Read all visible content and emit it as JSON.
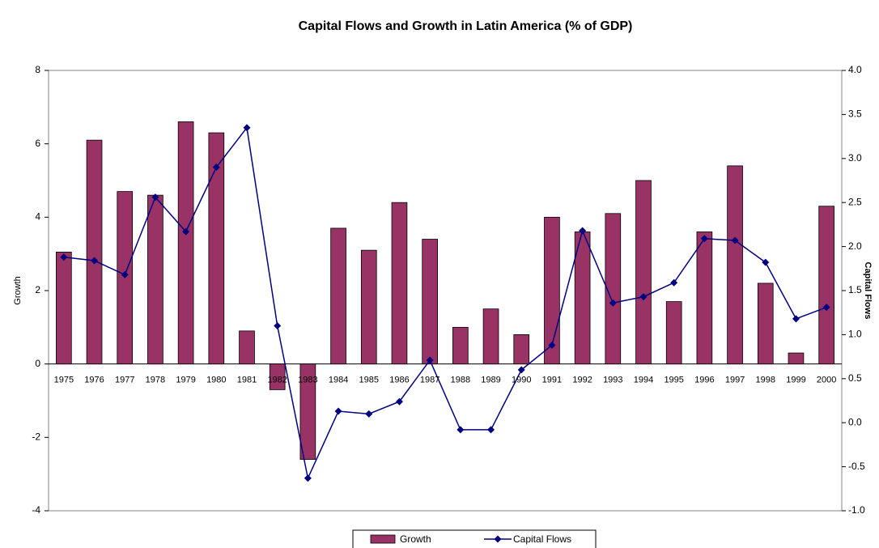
{
  "chart_data": {
    "type": "bar-line",
    "title": "Capital Flows and Growth in Latin America (% of GDP)",
    "y_label": "Growth",
    "y2_label": "Capital Flows",
    "categories": [
      "1975",
      "1976",
      "1977",
      "1978",
      "1979",
      "1980",
      "1981",
      "1982",
      "1983",
      "1984",
      "1985",
      "1986",
      "1987",
      "1988",
      "1989",
      "1990",
      "1991",
      "1992",
      "1993",
      "1994",
      "1995",
      "1996",
      "1997",
      "1998",
      "1999",
      "2000"
    ],
    "series": [
      {
        "name": "Growth",
        "color": "#993366",
        "kind": "bar",
        "values": [
          3.05,
          6.1,
          4.7,
          4.6,
          6.6,
          6.3,
          0.9,
          -0.7,
          -2.6,
          3.7,
          3.1,
          4.4,
          3.4,
          1.0,
          1.5,
          0.8,
          4.0,
          3.6,
          4.1,
          5.0,
          1.7,
          3.6,
          5.4,
          2.2,
          0.3,
          4.3
        ]
      },
      {
        "name": "Capital Flows",
        "color": "#000080",
        "kind": "line",
        "axis": "y2",
        "values": [
          1.88,
          1.84,
          1.68,
          2.56,
          2.17,
          2.9,
          3.35,
          1.1,
          -0.63,
          0.13,
          0.1,
          0.24,
          0.71,
          -0.08,
          -0.08,
          0.6,
          0.88,
          2.18,
          1.36,
          1.43,
          1.59,
          2.09,
          2.07,
          1.82,
          1.18,
          1.31
        ]
      }
    ],
    "ylim": [
      -4,
      8
    ],
    "yticks": [
      -4,
      -2,
      0,
      2,
      4,
      6,
      8
    ],
    "y2lim": [
      -1,
      4
    ],
    "y2ticks": [
      {
        "value": -1,
        "label": "-1.0"
      },
      {
        "value": -0.5,
        "label": "-0.5"
      },
      {
        "value": 0,
        "label": "0.0"
      },
      {
        "value": 0.5,
        "label": "0.5"
      },
      {
        "value": 1,
        "label": "1.0"
      },
      {
        "value": 1.5,
        "label": "1.5"
      },
      {
        "value": 2,
        "label": "2.0"
      },
      {
        "value": 2.5,
        "label": "2.5"
      },
      {
        "value": 3,
        "label": "3.0"
      },
      {
        "value": 3.5,
        "label": "3.5"
      },
      {
        "value": 4,
        "label": "4.0"
      }
    ],
    "grid": false,
    "legend": "bottom"
  }
}
